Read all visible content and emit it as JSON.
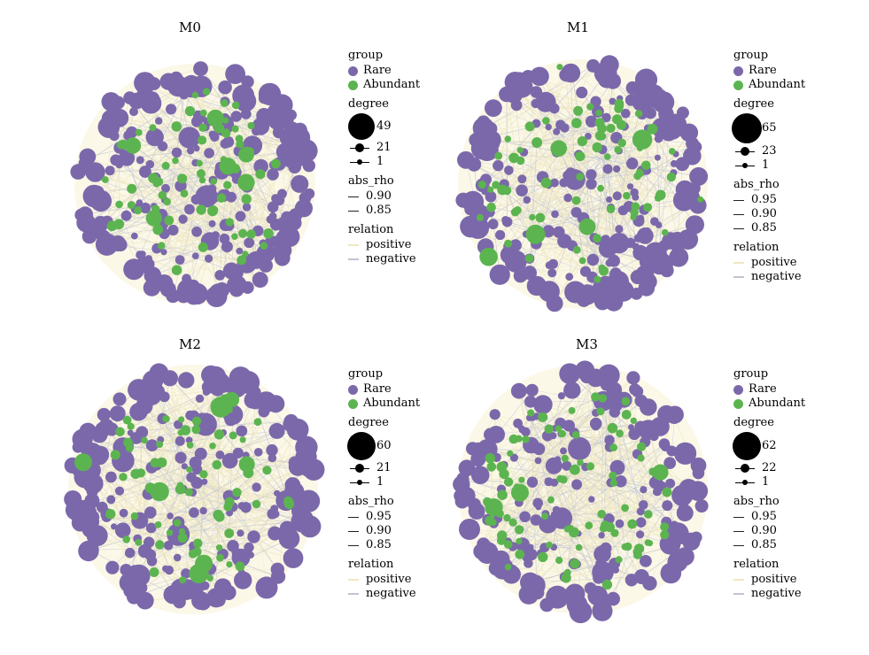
{
  "colors": {
    "rare": "#7b68aa",
    "abundant": "#5cb450",
    "positive": "#efe8c4",
    "negative": "#c2c4d2",
    "background": "#fbf8e8"
  },
  "panels": [
    {
      "title": "M0",
      "legend": {
        "group_title": "group",
        "group_items": [
          "Rare",
          "Abundant"
        ],
        "degree_title": "degree",
        "degree_values": [
          "49",
          "21",
          "1"
        ],
        "absrho_title": "abs_rho",
        "absrho_values": [
          "0.90",
          "0.85"
        ],
        "relation_title": "relation",
        "relation_items": [
          "positive",
          "negative"
        ]
      }
    },
    {
      "title": "M1",
      "legend": {
        "group_title": "group",
        "group_items": [
          "Rare",
          "Abundant"
        ],
        "degree_title": "degree",
        "degree_values": [
          "65",
          "23",
          "1"
        ],
        "absrho_title": "abs_rho",
        "absrho_values": [
          "0.95",
          "0.90",
          "0.85"
        ],
        "relation_title": "relation",
        "relation_items": [
          "positive",
          "negative"
        ]
      }
    },
    {
      "title": "M2",
      "legend": {
        "group_title": "group",
        "group_items": [
          "Rare",
          "Abundant"
        ],
        "degree_title": "degree",
        "degree_values": [
          "60",
          "21",
          "1"
        ],
        "absrho_title": "abs_rho",
        "absrho_values": [
          "0.95",
          "0.90",
          "0.85"
        ],
        "relation_title": "relation",
        "relation_items": [
          "positive",
          "negative"
        ]
      }
    },
    {
      "title": "M3",
      "legend": {
        "group_title": "group",
        "group_items": [
          "Rare",
          "Abundant"
        ],
        "degree_title": "degree",
        "degree_values": [
          "62",
          "22",
          "1"
        ],
        "absrho_title": "abs_rho",
        "absrho_values": [
          "0.95",
          "0.90",
          "0.85"
        ],
        "relation_title": "relation",
        "relation_items": [
          "positive",
          "negative"
        ]
      }
    }
  ]
}
